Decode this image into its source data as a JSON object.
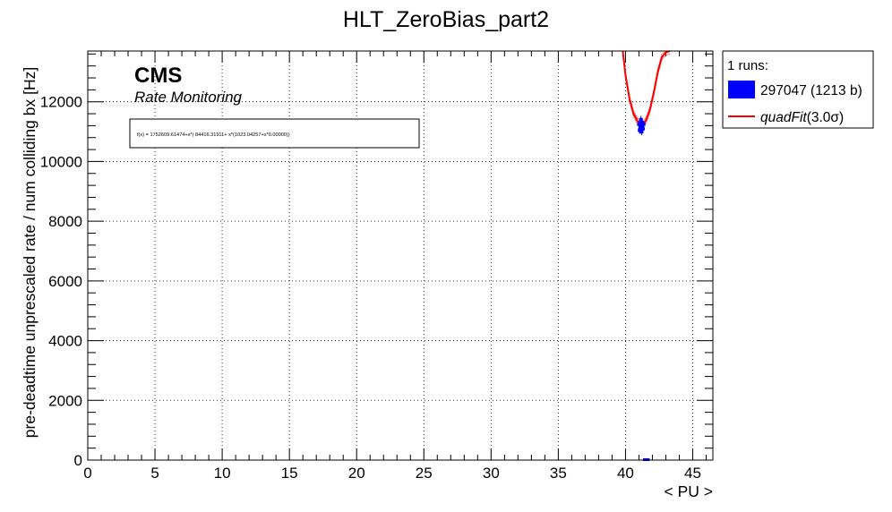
{
  "chart_data": {
    "type": "scatter",
    "title": "HLT_ZeroBias_part2",
    "xlabel": "< PU >",
    "ylabel": "pre-deadtime unprescaled rate / num colliding bx [Hz]",
    "xlim": [
      0,
      46.5
    ],
    "ylim": [
      0,
      13700
    ],
    "xticks": [
      0,
      5,
      10,
      15,
      20,
      25,
      30,
      35,
      40,
      45
    ],
    "yticks": [
      0,
      2000,
      4000,
      6000,
      8000,
      10000,
      12000
    ],
    "grid": true,
    "legend_position": "top-right, outside plot",
    "annotations": {
      "cms": "CMS",
      "subtitle": "Rate Monitoring",
      "fit_formula": "f(x) = 1752609.61474+x*( 84416.31911+ x*(1023.04257+x*0.00000))"
    },
    "legend": {
      "header": "1 runs:",
      "entries": [
        {
          "label": "297047 (1213 b)",
          "color": "#0000ff",
          "kind": "box"
        },
        {
          "label_text": "quadFit",
          "label_suffix": "(3.0σ)",
          "color": "#ff0000",
          "kind": "line"
        }
      ]
    },
    "series": [
      {
        "name": "297047 (1213 b)",
        "color": "#0000ff",
        "points": [
          {
            "x": 41.0,
            "y": 11250
          },
          {
            "x": 41.1,
            "y": 11150
          },
          {
            "x": 41.2,
            "y": 11300
          },
          {
            "x": 41.3,
            "y": 11100
          },
          {
            "x": 41.15,
            "y": 11400
          },
          {
            "x": 41.25,
            "y": 11200
          },
          {
            "x": 41.05,
            "y": 11050
          },
          {
            "x": 41.35,
            "y": 11250
          },
          {
            "x": 41.2,
            "y": 11000
          },
          {
            "x": 41.5,
            "y": 0
          },
          {
            "x": 41.6,
            "y": 0
          }
        ]
      },
      {
        "name": "quadFit",
        "color": "#ff0000",
        "fit": {
          "a": 1023.04257,
          "b": 84416.31911,
          "c": 1752609.61474
        },
        "curve_points": [
          {
            "x": 39.8,
            "y": 13700
          },
          {
            "x": 40.0,
            "y": 12900
          },
          {
            "x": 40.3,
            "y": 12100
          },
          {
            "x": 40.6,
            "y": 11600
          },
          {
            "x": 40.9,
            "y": 11350
          },
          {
            "x": 41.2,
            "y": 11250
          },
          {
            "x": 41.5,
            "y": 11350
          },
          {
            "x": 41.8,
            "y": 11700
          },
          {
            "x": 42.1,
            "y": 12300
          },
          {
            "x": 42.4,
            "y": 13000
          },
          {
            "x": 42.7,
            "y": 13500
          },
          {
            "x": 43.0,
            "y": 13650
          },
          {
            "x": 43.3,
            "y": 13700
          }
        ]
      }
    ]
  }
}
